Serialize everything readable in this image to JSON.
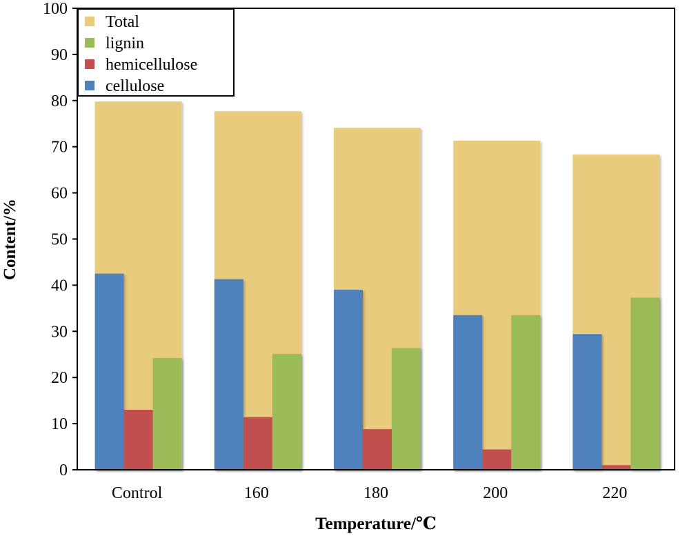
{
  "chart_data": {
    "type": "bar",
    "title": "",
    "xlabel": "Temperature/℃",
    "ylabel": "Content/%",
    "ylim": [
      0,
      100
    ],
    "yticks": [
      0,
      10,
      20,
      30,
      40,
      50,
      60,
      70,
      80,
      90,
      100
    ],
    "categories": [
      "Control",
      "160",
      "180",
      "200",
      "220"
    ],
    "series": [
      {
        "name": "Total",
        "color": "#E8CB7B",
        "values": [
          79.8,
          77.7,
          74.1,
          71.3,
          68.3
        ]
      },
      {
        "name": "lignin",
        "color": "#9BBB59",
        "values": [
          24.2,
          25.1,
          26.4,
          33.5,
          37.3
        ]
      },
      {
        "name": "hemicellulose",
        "color": "#C0504D",
        "values": [
          13.0,
          11.4,
          8.8,
          4.4,
          1.0
        ]
      },
      {
        "name": "cellulose",
        "color": "#4F81BD",
        "values": [
          42.5,
          41.3,
          39.0,
          33.5,
          29.4
        ]
      }
    ],
    "legend": {
      "location": "top-left",
      "order": [
        "Total",
        "lignin",
        "hemicellulose",
        "cellulose"
      ]
    },
    "grid": false
  }
}
